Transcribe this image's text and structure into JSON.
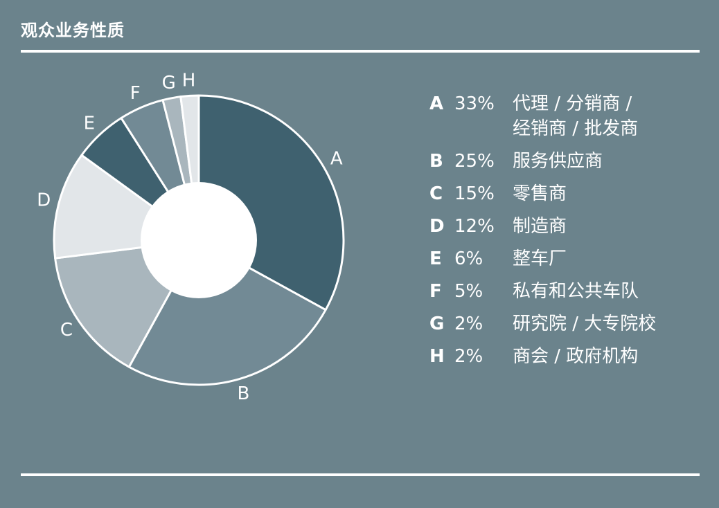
{
  "title": "观众业务性质",
  "chart_data": {
    "type": "pie",
    "donut": true,
    "slices": [
      {
        "label": "A",
        "value": 33,
        "percent": "33%",
        "description": [
          "代理 / 分销商 /",
          "经销商 / 批发商"
        ],
        "color": "#3f616f"
      },
      {
        "label": "B",
        "value": 25,
        "percent": "25%",
        "description": [
          "服务供应商"
        ],
        "color": "#728a95"
      },
      {
        "label": "C",
        "value": 15,
        "percent": "15%",
        "description": [
          "零售商"
        ],
        "color": "#a9b6bd"
      },
      {
        "label": "D",
        "value": 12,
        "percent": "12%",
        "description": [
          "制造商"
        ],
        "color": "#e2e6e9"
      },
      {
        "label": "E",
        "value": 6,
        "percent": "6%",
        "description": [
          "整车厂"
        ],
        "color": "#3f616f"
      },
      {
        "label": "F",
        "value": 5,
        "percent": "5%",
        "description": [
          "私有和公共车队"
        ],
        "color": "#728a95"
      },
      {
        "label": "G",
        "value": 2,
        "percent": "2%",
        "description": [
          "研究院 / 大专院校"
        ],
        "color": "#a9b6bd"
      },
      {
        "label": "H",
        "value": 2,
        "percent": "2%",
        "description": [
          "商会 / 政府机构"
        ],
        "color": "#e2e6e9"
      }
    ]
  }
}
